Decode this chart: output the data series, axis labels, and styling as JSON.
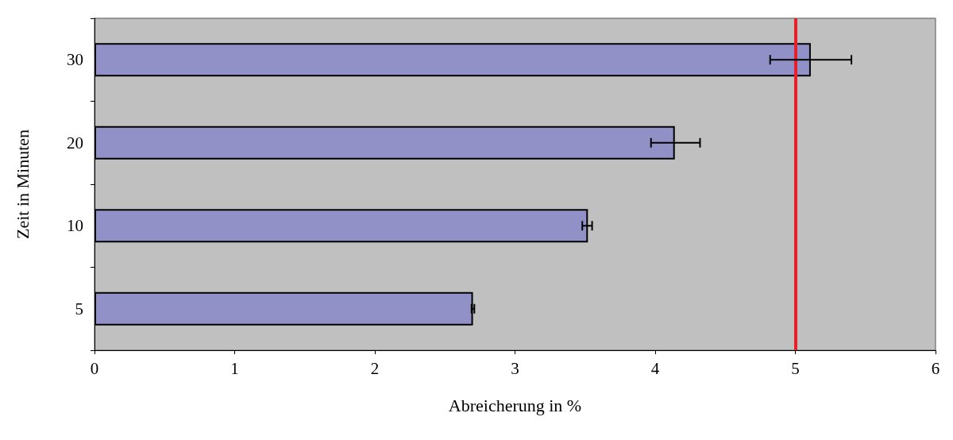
{
  "chart_data": {
    "type": "bar",
    "orientation": "horizontal",
    "xlabel": "Abreicherung in %",
    "ylabel": "Zeit in Minuten",
    "categories": [
      "30",
      "20",
      "10",
      "5"
    ],
    "values": [
      5.11,
      4.14,
      3.52,
      2.7
    ],
    "errors": [
      [
        4.82,
        5.4
      ],
      [
        3.97,
        4.32
      ],
      [
        3.48,
        3.55
      ],
      [
        2.69,
        2.71
      ]
    ],
    "color": "#9191c8",
    "xlim": [
      0,
      6
    ],
    "xticks": [
      0,
      1,
      2,
      3,
      4,
      5,
      6
    ],
    "ref_lines": [
      {
        "axis": "x",
        "value": 5,
        "color": "#e8202a"
      }
    ],
    "grid": false
  }
}
